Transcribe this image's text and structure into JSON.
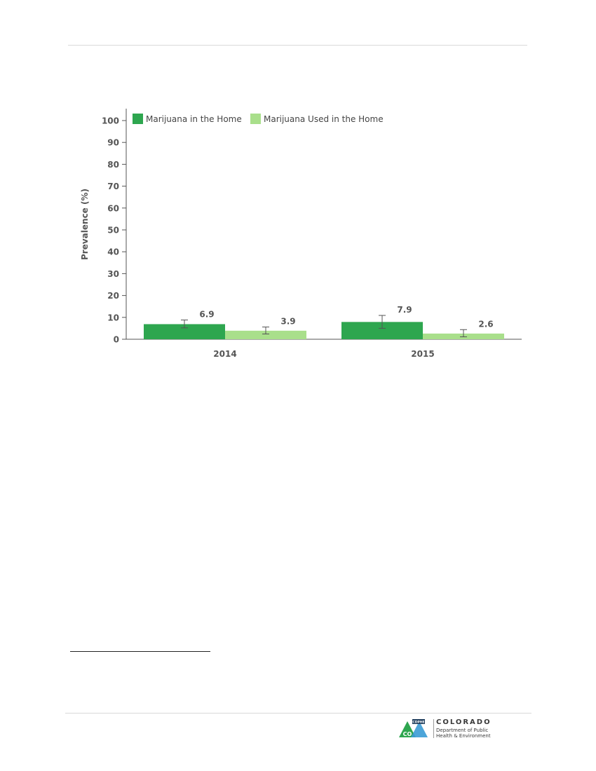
{
  "chart_data": {
    "type": "bar",
    "title": "",
    "xlabel": "",
    "ylabel": "Prevalence (%)",
    "ylim": [
      0,
      100
    ],
    "yticks": [
      0,
      10,
      20,
      30,
      40,
      50,
      60,
      70,
      80,
      90,
      100
    ],
    "categories": [
      "2014",
      "2015"
    ],
    "legend_position": "top-left",
    "grid": false,
    "series": [
      {
        "name": "Marijuana in the Home",
        "color": "#2ea64f",
        "values": [
          6.9,
          7.9
        ],
        "labels": [
          "6.9",
          "7.9"
        ],
        "ci_low": [
          5.2,
          5.0
        ],
        "ci_high": [
          8.8,
          10.9
        ]
      },
      {
        "name": "Marijuana Used in the Home",
        "color": "#a9df8b",
        "values": [
          3.9,
          2.6
        ],
        "labels": [
          "3.9",
          "2.6"
        ],
        "ci_low": [
          2.4,
          1.1
        ],
        "ci_high": [
          5.6,
          4.4
        ]
      }
    ]
  },
  "footer": {
    "logo_badge": "CDPHE",
    "logo_letters": "CO",
    "logo_title": "COLORADO",
    "logo_line1": "Department of Public",
    "logo_line2": "Health & Environment"
  }
}
